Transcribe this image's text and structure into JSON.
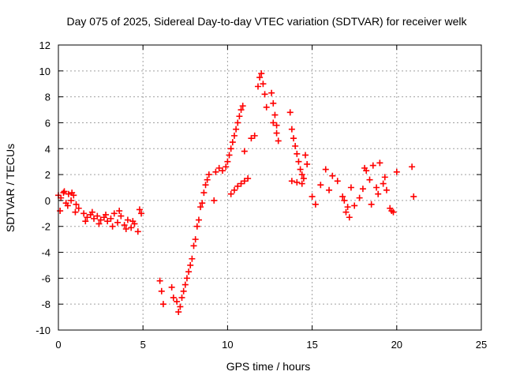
{
  "chart_data": {
    "type": "scatter",
    "title": "Day 075 of 2025, Sidereal Day-to-day VTEC variation (SDTVAR) for receiver welk",
    "xlabel": "GPS time / hours",
    "ylabel": "SDTVAR / TECUs",
    "xlim": [
      0,
      25
    ],
    "ylim": [
      -10,
      12
    ],
    "xticks": [
      0,
      5,
      10,
      15,
      20,
      25
    ],
    "yticks": [
      -10,
      -8,
      -6,
      -4,
      -2,
      0,
      2,
      4,
      6,
      8,
      10,
      12
    ],
    "grid": true,
    "marker": "+",
    "color": "#ff0000",
    "series": [
      {
        "name": "SDTVAR",
        "x": [
          0.0,
          0.15,
          0.3,
          0.45,
          0.6,
          0.75,
          0.9,
          1.05,
          1.2,
          0.1,
          0.35,
          0.55,
          0.8,
          1.0,
          1.5,
          1.7,
          1.9,
          2.1,
          2.3,
          2.5,
          2.7,
          2.9,
          3.1,
          3.3,
          3.5,
          3.7,
          3.9,
          4.1,
          4.3,
          4.5,
          4.7,
          4.9,
          1.6,
          2.0,
          2.4,
          2.8,
          3.2,
          3.6,
          4.0,
          4.4,
          4.8,
          6.0,
          6.1,
          6.2,
          6.7,
          6.8,
          7.0,
          7.1,
          7.2,
          7.3,
          7.4,
          7.5,
          7.6,
          7.7,
          7.8,
          7.9,
          8.0,
          8.1,
          8.2,
          8.3,
          8.4,
          8.5,
          8.6,
          8.7,
          8.8,
          8.9,
          9.2,
          9.3,
          9.5,
          9.7,
          9.9,
          10.0,
          10.1,
          10.2,
          10.3,
          10.4,
          10.5,
          10.6,
          10.7,
          10.8,
          10.9,
          11.0,
          10.2,
          10.4,
          10.6,
          10.8,
          11.0,
          11.2,
          11.4,
          11.6,
          11.8,
          11.9,
          12.0,
          12.1,
          12.2,
          12.3,
          12.6,
          12.7,
          12.8,
          12.9,
          13.0,
          12.7,
          12.9,
          13.7,
          13.8,
          13.9,
          14.0,
          14.1,
          14.2,
          14.3,
          14.4,
          14.5,
          14.6,
          14.7,
          13.8,
          14.1,
          14.4,
          15.0,
          15.2,
          15.5,
          15.8,
          16.0,
          16.2,
          16.5,
          16.8,
          17.0,
          17.2,
          17.5,
          17.8,
          18.0,
          18.2,
          18.4,
          18.6,
          18.8,
          19.0,
          19.2,
          19.4,
          19.6,
          19.8,
          20.0,
          16.9,
          17.1,
          17.3,
          18.1,
          18.5,
          18.9,
          19.3,
          19.7,
          20.9,
          21.0
        ],
        "y": [
          0.4,
          0.2,
          0.6,
          -0.2,
          0.5,
          0.0,
          0.4,
          -0.3,
          -0.6,
          -0.8,
          0.7,
          -0.4,
          0.6,
          -0.9,
          -1.0,
          -1.3,
          -1.1,
          -1.4,
          -1.2,
          -1.5,
          -1.3,
          -1.6,
          -1.4,
          -1.0,
          -1.7,
          -1.2,
          -1.9,
          -1.5,
          -2.1,
          -1.8,
          -2.4,
          -1.0,
          -1.6,
          -0.9,
          -1.8,
          -1.1,
          -2.0,
          -0.8,
          -2.2,
          -1.6,
          -0.7,
          -6.2,
          -7.0,
          -8.0,
          -6.7,
          -7.5,
          -7.8,
          -8.6,
          -8.2,
          -7.5,
          -7.0,
          -6.5,
          -6.0,
          -5.5,
          -5.0,
          -4.5,
          -3.5,
          -3.0,
          -2.0,
          -1.5,
          -0.5,
          -0.2,
          0.6,
          1.2,
          1.6,
          2.0,
          0.0,
          2.2,
          2.5,
          2.3,
          2.6,
          3.0,
          3.5,
          4.0,
          4.5,
          5.0,
          5.5,
          6.0,
          6.5,
          7.0,
          7.3,
          3.8,
          0.5,
          0.8,
          1.1,
          1.3,
          1.5,
          1.7,
          4.8,
          5.0,
          8.8,
          9.5,
          9.8,
          9.0,
          8.2,
          7.2,
          8.3,
          7.5,
          6.6,
          5.8,
          4.6,
          6.0,
          5.2,
          6.8,
          5.5,
          4.8,
          4.2,
          3.6,
          3.0,
          2.4,
          2.0,
          1.7,
          3.5,
          2.8,
          1.5,
          1.4,
          1.3,
          0.3,
          -0.3,
          1.2,
          2.4,
          0.8,
          1.9,
          1.5,
          0.3,
          -0.9,
          -1.3,
          -0.4,
          0.2,
          0.9,
          2.3,
          1.6,
          2.7,
          1.0,
          2.9,
          1.3,
          0.8,
          -0.6,
          -0.9,
          2.2,
          0.0,
          -0.5,
          1.0,
          2.5,
          -0.3,
          0.5,
          1.8,
          -0.8,
          2.6,
          0.3
        ]
      }
    ]
  }
}
